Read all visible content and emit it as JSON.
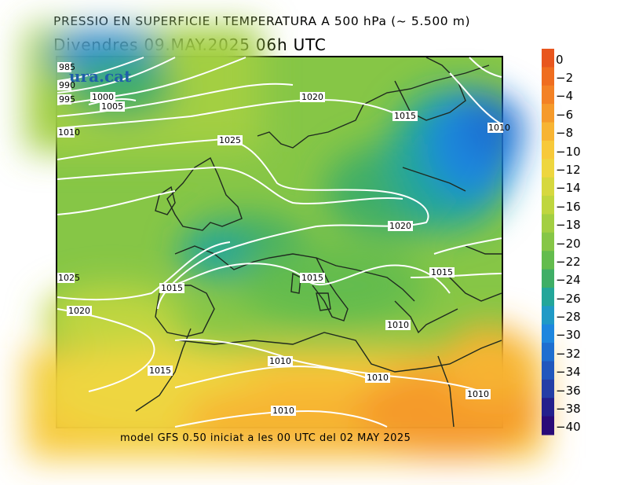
{
  "header": {
    "title_line1": "PRESSIO EN SUPERFICIE I TEMPERATURA A 500 hPa (~ 5.500 m)",
    "title_line2": "Divendres  09.MAY.2025 06h UTC"
  },
  "footer": {
    "model_text": "model GFS 0.50 iniciat a les 00 UTC del 02 MAY 2025"
  },
  "brand": {
    "watermark": "ura.cat"
  },
  "isobars": {
    "labels": [
      "985",
      "990",
      "995",
      "1000",
      "1005",
      "1010",
      "1025",
      "1020",
      "1015",
      "1025",
      "1020",
      "1015",
      "1015",
      "1015",
      "1010",
      "1010",
      "1010",
      "1010",
      "1015",
      "1020",
      "1010",
      "1010"
    ]
  },
  "colorbar": {
    "labels": [
      "0",
      "−2",
      "−4",
      "−6",
      "−8",
      "−10",
      "−12",
      "−14",
      "−16",
      "−18",
      "−20",
      "−22",
      "−24",
      "−26",
      "−28",
      "−30",
      "−32",
      "−34",
      "−36",
      "−38",
      "−40"
    ],
    "colors": [
      "#e8561e",
      "#ef6d1f",
      "#f38225",
      "#f59a2b",
      "#f7b433",
      "#f7c93a",
      "#eed63f",
      "#d6d83f",
      "#bfd63f",
      "#a3cf42",
      "#86c646",
      "#63bc4d",
      "#3fae66",
      "#23a69a",
      "#209ac6",
      "#1e87de",
      "#1e6fd0",
      "#2057bd",
      "#243ea6",
      "#241f8c",
      "#2a0a78"
    ]
  }
}
